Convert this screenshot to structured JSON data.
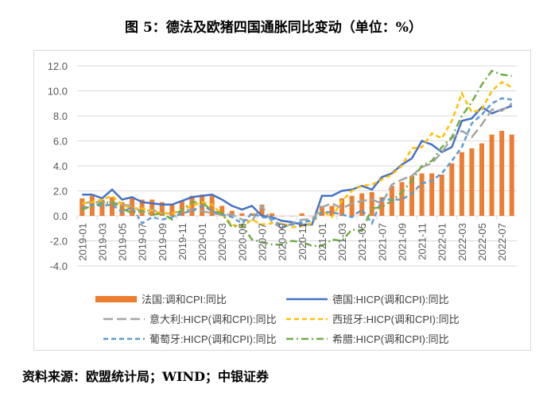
{
  "title": "图 5：德法及欧猪四国通胀同比变动（单位：%）",
  "source": "资料来源：欧盟统计局；WIND；中银证券",
  "chart_data": {
    "type": "bar+line",
    "ylim": [
      -4,
      12
    ],
    "yticks": [
      "12.0",
      "10.0",
      "8.0",
      "6.0",
      "4.0",
      "2.0",
      "0.0",
      "-2.0",
      "-4.0"
    ],
    "grid": true,
    "legend_placement": "bottom",
    "categories": [
      "2019-01",
      "2019-02",
      "2019-03",
      "2019-04",
      "2019-05",
      "2019-06",
      "2019-07",
      "2019-08",
      "2019-09",
      "2019-10",
      "2019-11",
      "2019-12",
      "2020-01",
      "2020-02",
      "2020-03",
      "2020-04",
      "2020-05",
      "2020-06",
      "2020-07",
      "2020-08",
      "2020-09",
      "2020-10",
      "2020-11",
      "2020-12",
      "2021-01",
      "2021-02",
      "2021-03",
      "2021-04",
      "2021-05",
      "2021-06",
      "2021-07",
      "2021-08",
      "2021-09",
      "2021-10",
      "2021-11",
      "2021-12",
      "2022-01",
      "2022-02",
      "2022-03",
      "2022-04",
      "2022-05",
      "2022-06",
      "2022-07",
      "2022-08"
    ],
    "xtick_labels": [
      "2019-01",
      "2019-03",
      "2019-05",
      "2019-07",
      "2019-09",
      "2019-11",
      "2020-01",
      "2020-03",
      "2020-05",
      "2020-07",
      "2020-09",
      "2020-11",
      "2021-01",
      "2021-03",
      "2021-05",
      "2021-07",
      "2021-09",
      "2021-11",
      "2022-01",
      "2022-03",
      "2022-05",
      "2022-07"
    ],
    "series": [
      {
        "name": "法国:调和CPI:同比",
        "type": "bar",
        "color": "#ed7d31",
        "values": [
          1.4,
          1.6,
          1.3,
          1.5,
          1.1,
          1.4,
          1.3,
          1.3,
          1.1,
          0.9,
          1.2,
          1.6,
          1.7,
          1.6,
          0.8,
          0.4,
          0.2,
          0.2,
          0.9,
          0.2,
          0.0,
          0.0,
          0.2,
          0.0,
          0.8,
          0.8,
          1.4,
          1.6,
          1.8,
          1.9,
          1.5,
          2.4,
          2.7,
          3.2,
          3.4,
          3.4,
          3.3,
          4.2,
          5.1,
          5.4,
          5.8,
          6.5,
          6.8,
          6.5
        ]
      },
      {
        "name": "德国:HICP(调和CPI):同比",
        "type": "line",
        "style": "solid",
        "color": "#4472c4",
        "values": [
          1.7,
          1.7,
          1.4,
          2.1,
          1.3,
          1.5,
          1.1,
          1.0,
          0.9,
          0.9,
          1.2,
          1.5,
          1.6,
          1.7,
          1.3,
          0.8,
          0.5,
          0.8,
          0.0,
          -0.1,
          -0.4,
          -0.5,
          -0.7,
          -0.7,
          1.6,
          1.6,
          2.0,
          2.1,
          2.4,
          2.1,
          3.1,
          3.4,
          4.1,
          4.6,
          6.0,
          5.7,
          5.1,
          5.5,
          7.6,
          7.8,
          8.7,
          8.2,
          8.5,
          8.8
        ]
      },
      {
        "name": "意大利:HICP(调和CPI):同比",
        "type": "line",
        "style": "longdash",
        "color": "#a5a5a5",
        "values": [
          1.0,
          1.1,
          1.1,
          1.1,
          0.9,
          0.8,
          0.3,
          0.5,
          0.2,
          0.2,
          0.4,
          0.5,
          0.4,
          0.2,
          0.1,
          0.1,
          -0.3,
          -0.4,
          0.8,
          -0.5,
          -1.0,
          -0.6,
          -0.3,
          -0.3,
          0.7,
          1.0,
          0.6,
          1.0,
          1.2,
          1.3,
          1.0,
          2.5,
          2.9,
          3.2,
          3.9,
          4.2,
          5.1,
          6.2,
          6.8,
          6.3,
          7.3,
          8.5,
          8.4,
          9.0
        ]
      },
      {
        "name": "西班牙:HICP(调和CPI):同比",
        "type": "line",
        "style": "dash",
        "color": "#ffc000",
        "values": [
          1.0,
          1.1,
          1.3,
          1.6,
          0.9,
          0.6,
          0.6,
          0.4,
          0.2,
          0.2,
          0.5,
          0.8,
          1.1,
          0.9,
          0.1,
          -0.7,
          -0.9,
          -0.3,
          -0.7,
          -0.6,
          -0.6,
          -0.9,
          -0.8,
          -0.6,
          0.4,
          -0.1,
          1.2,
          2.0,
          2.4,
          2.5,
          2.9,
          3.3,
          4.0,
          5.4,
          5.5,
          6.6,
          6.2,
          7.6,
          9.8,
          8.3,
          8.5,
          10.0,
          10.7,
          10.3
        ]
      },
      {
        "name": "葡萄牙:HICP(调和CPI):同比",
        "type": "line",
        "style": "dash",
        "color": "#5b9bd5",
        "values": [
          0.6,
          0.9,
          0.8,
          0.9,
          0.3,
          0.7,
          -0.6,
          -0.1,
          -0.3,
          -0.1,
          0.2,
          0.4,
          0.8,
          0.4,
          0.1,
          -0.1,
          -0.6,
          0.2,
          -0.1,
          -0.2,
          -0.9,
          -0.7,
          -0.5,
          -0.4,
          0.3,
          0.3,
          0.1,
          -0.1,
          0.5,
          -0.6,
          1.3,
          1.3,
          1.3,
          1.8,
          2.6,
          2.8,
          3.4,
          4.4,
          5.5,
          7.4,
          8.1,
          9.0,
          9.4,
          9.3
        ]
      },
      {
        "name": "希腊:HICP(调和CPI):同比",
        "type": "line",
        "style": "dashdot",
        "color": "#70ad47",
        "values": [
          0.5,
          0.8,
          1.0,
          1.1,
          0.6,
          0.2,
          0.4,
          0.1,
          0.2,
          -0.3,
          0.5,
          1.1,
          1.1,
          0.4,
          0.2,
          -0.9,
          -0.7,
          -1.9,
          -2.1,
          -2.3,
          -2.3,
          -2.0,
          -2.1,
          -2.4,
          -2.4,
          -1.9,
          -2.0,
          -1.1,
          -1.2,
          0.6,
          0.7,
          1.2,
          1.9,
          2.8,
          4.0,
          4.4,
          5.5,
          6.3,
          8.0,
          9.1,
          10.5,
          11.6,
          11.3,
          11.2
        ]
      }
    ]
  }
}
